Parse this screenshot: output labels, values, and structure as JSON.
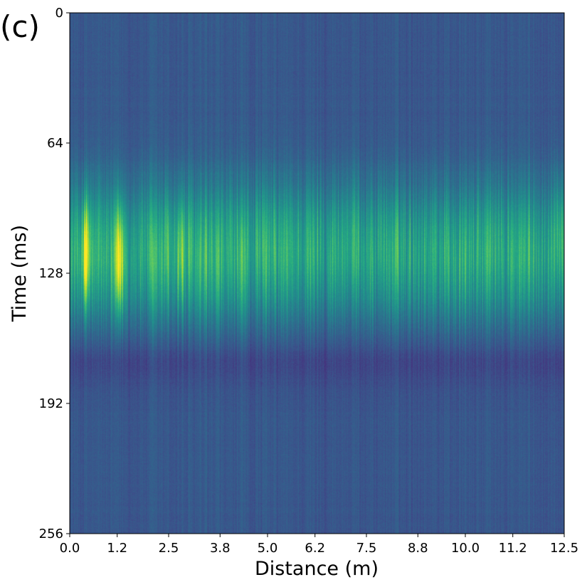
{
  "chart_data": {
    "type": "heatmap",
    "panel_label": "(c)",
    "xlabel": "Distance (m)",
    "ylabel": "Time (ms)",
    "xlim": [
      0.0,
      12.5
    ],
    "ylim": [
      256,
      0
    ],
    "x_ticks": [
      0.0,
      1.2,
      2.5,
      3.8,
      5.0,
      6.2,
      7.5,
      8.8,
      10.0,
      11.2,
      12.5
    ],
    "x_tick_labels": [
      "0.0",
      "1.2",
      "2.5",
      "3.8",
      "5.0",
      "6.2",
      "7.5",
      "8.8",
      "10.0",
      "11.2",
      "12.5"
    ],
    "y_ticks": [
      0,
      64,
      128,
      192,
      256
    ],
    "y_tick_labels": [
      "0",
      "64",
      "128",
      "192",
      "256"
    ],
    "colormap": "viridis",
    "colormap_stops": [
      "#440154",
      "#472d7b",
      "#3b528b",
      "#2c728e",
      "#21918c",
      "#28ae80",
      "#5ec962",
      "#addc30",
      "#fde725"
    ],
    "intensity_peak_time_ms": 118,
    "peak_spots": [
      {
        "x_m": 0.4,
        "t_ms": 120,
        "level": 0.93
      },
      {
        "x_m": 1.25,
        "t_ms": 122,
        "level": 0.9
      },
      {
        "x_m": 2.8,
        "t_ms": 118,
        "level": 0.65
      },
      {
        "x_m": 2.45,
        "t_ms": 110,
        "level": 0.55
      },
      {
        "x_m": 12.4,
        "t_ms": 105,
        "level": 0.6
      }
    ],
    "grid": false,
    "legend": "none"
  }
}
